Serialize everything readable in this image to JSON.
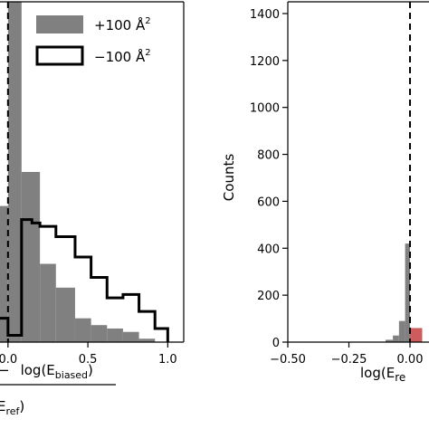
{
  "chart_data": [
    {
      "type": "bar",
      "panel": "left",
      "xlim": [
        -0.05,
        1.1
      ],
      "ylim": [
        0,
        1
      ],
      "x_ticks": [
        {
          "value": 0.0,
          "label": "0.0"
        },
        {
          "value": 0.5,
          "label": "0.5"
        },
        {
          "value": 1.0,
          "label": "1.0"
        }
      ],
      "xlabel_line1": "log(E",
      "xlabel_line1_sub": "biased",
      "xlabel_line1_tail": ")",
      "xlabel_prefix": "−",
      "xlabel_line2": "E",
      "xlabel_line2_sub": "ref",
      "xlabel_line2_tail": ")",
      "vline_x": 0.0,
      "legend": {
        "placement": "top-right",
        "entries": [
          {
            "label": "+100 Å",
            "sup": "2",
            "style": "filled",
            "color": "#808080"
          },
          {
            "label": "−100 Å",
            "sup": "2",
            "style": "step",
            "color": "#000000"
          }
        ]
      },
      "series": [
        {
          "name": "+100 Å²",
          "style": "filled",
          "color": "#808080",
          "bin_edges": [
            -0.05,
            0.0,
            0.085,
            0.2,
            0.3,
            0.42,
            0.52,
            0.62,
            0.72,
            0.82,
            0.92
          ],
          "counts": [
            0.4,
            1.0,
            0.5,
            0.23,
            0.16,
            0.07,
            0.05,
            0.04,
            0.03,
            0.01
          ]
        },
        {
          "name": "−100 Å²",
          "style": "step",
          "color": "#000000",
          "bin_edges": [
            -0.05,
            0.0,
            0.085,
            0.15,
            0.2,
            0.3,
            0.42,
            0.52,
            0.62,
            0.72,
            0.82,
            0.92,
            1.0
          ],
          "counts": [
            0.07,
            0.02,
            0.36,
            0.35,
            0.34,
            0.31,
            0.25,
            0.19,
            0.13,
            0.14,
            0.09,
            0.04
          ]
        }
      ]
    },
    {
      "type": "bar",
      "panel": "right",
      "xlim": [
        -0.5,
        0.05
      ],
      "ylim": [
        0,
        1450
      ],
      "ylabel": "Counts",
      "y_ticks": [
        0,
        200,
        400,
        600,
        800,
        1000,
        1200,
        1400
      ],
      "x_ticks": [
        {
          "value": -0.5,
          "label": "−0.50"
        },
        {
          "value": -0.25,
          "label": "−0.25"
        },
        {
          "value": 0.0,
          "label": "0.00"
        }
      ],
      "xlabel": "log(E",
      "xlabel_sub": "re",
      "vline_x": 0.0,
      "series": [
        {
          "name": "gray",
          "color": "#808080",
          "bin_edges": [
            -0.1,
            -0.07,
            -0.045,
            -0.02,
            0.0
          ],
          "counts": [
            10,
            28,
            90,
            420
          ]
        },
        {
          "name": "red",
          "color": "#cd5c5c",
          "bin_edges": [
            0.0,
            0.05
          ],
          "counts": [
            60
          ]
        }
      ]
    }
  ]
}
